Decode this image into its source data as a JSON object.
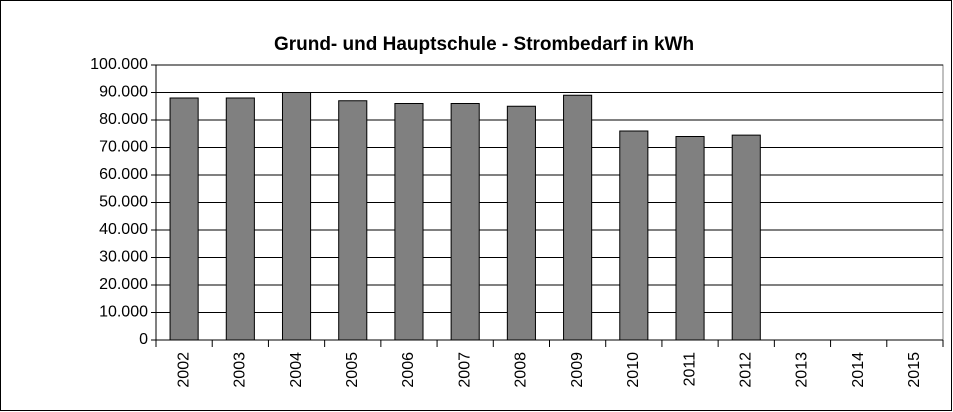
{
  "chart_data": {
    "type": "bar",
    "title": "Grund- und Hauptschule - Strombedarf in kWh",
    "categories": [
      "2002",
      "2003",
      "2004",
      "2005",
      "2006",
      "2007",
      "2008",
      "2009",
      "2010",
      "2011",
      "2012",
      "2013",
      "2014",
      "2015"
    ],
    "values": [
      88000,
      88000,
      90000,
      87000,
      86000,
      86000,
      85000,
      89000,
      76000,
      74000,
      74500,
      null,
      null,
      null
    ],
    "color": "#808080",
    "ylim": [
      0,
      100000
    ],
    "yticks": [
      0,
      {
        "value": 10000,
        "label": "10.000"
      },
      {
        "value": 20000,
        "label": "20.000"
      },
      {
        "value": 30000,
        "label": "30.000"
      },
      {
        "value": 40000,
        "label": "40.000"
      },
      {
        "value": 50000,
        "label": "50.000"
      },
      {
        "value": 60000,
        "label": "60.000"
      },
      {
        "value": 70000,
        "label": "70.000"
      },
      {
        "value": 80000,
        "label": "80.000"
      },
      {
        "value": 90000,
        "label": "90.000"
      },
      {
        "value": 100000,
        "label": "100.000"
      }
    ],
    "grid": true
  }
}
